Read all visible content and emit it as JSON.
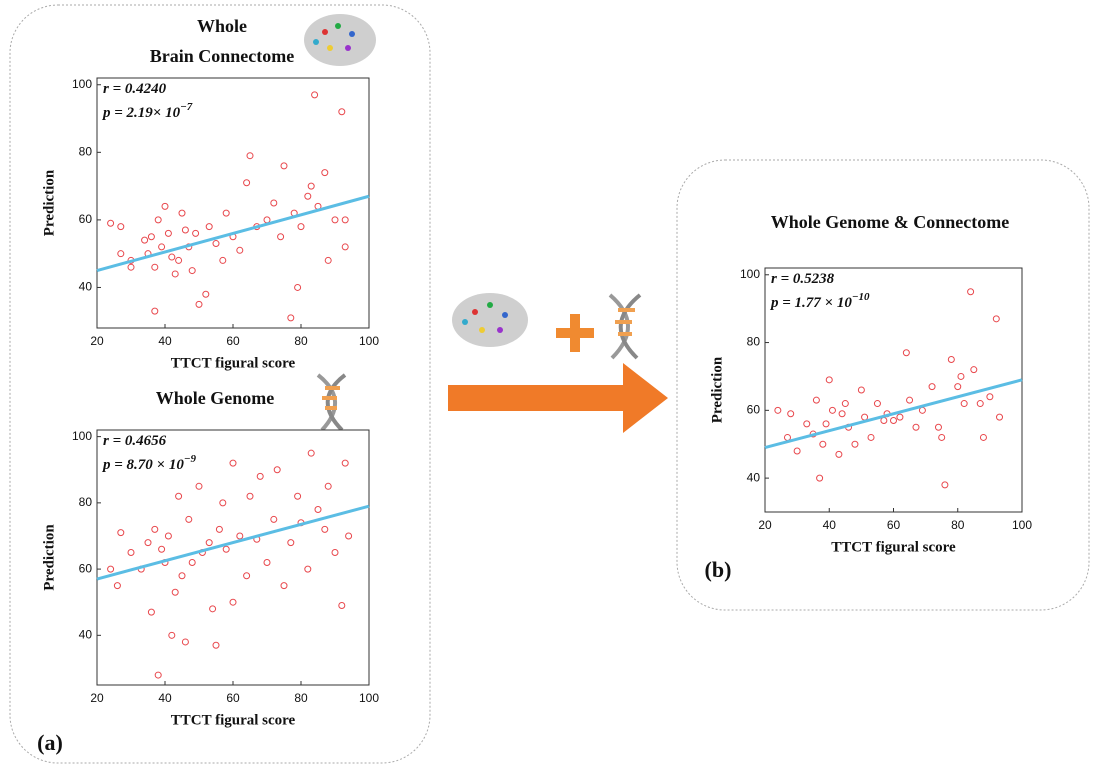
{
  "chart_data": [
    {
      "type": "scatter",
      "panel": "(a)",
      "title": [
        "Whole",
        "Brain Connectome"
      ],
      "xlabel": "TTCT figural score",
      "ylabel": "Prediction",
      "annotations": [
        {
          "text": "r = 0.4240"
        },
        {
          "text": "p = 2.19× 10",
          "sup": "−7"
        }
      ],
      "color": "#e8474c",
      "x": [
        24,
        27,
        27,
        30,
        30,
        34,
        35,
        36,
        37,
        37,
        38,
        39,
        40,
        41,
        42,
        43,
        44,
        45,
        46,
        47,
        48,
        49,
        50,
        52,
        53,
        55,
        57,
        58,
        60,
        62,
        64,
        65,
        67,
        70,
        72,
        74,
        75,
        77,
        78,
        79,
        80,
        82,
        83,
        84,
        85,
        87,
        88,
        90,
        92,
        93,
        93
      ],
      "y": [
        59,
        50,
        58,
        48,
        46,
        54,
        50,
        55,
        46,
        33,
        60,
        52,
        64,
        56,
        49,
        44,
        48,
        62,
        57,
        52,
        45,
        56,
        35,
        38,
        58,
        53,
        48,
        62,
        55,
        51,
        71,
        79,
        58,
        60,
        65,
        55,
        76,
        31,
        62,
        40,
        58,
        67,
        70,
        97,
        64,
        74,
        48,
        60,
        92,
        52,
        60
      ],
      "fit": {
        "x": [
          20,
          100
        ],
        "y": [
          45,
          67
        ],
        "color": "#5bbde4"
      },
      "xlim": [
        20,
        100
      ],
      "xticks": [
        20,
        40,
        60,
        80,
        100
      ],
      "ylim": [
        28,
        102
      ],
      "yticks": [
        40,
        60,
        80,
        100
      ]
    },
    {
      "type": "scatter",
      "title": [
        "Whole Genome"
      ],
      "xlabel": "TTCT figural score",
      "ylabel": "Prediction",
      "annotations": [
        {
          "text": "r = 0.4656"
        },
        {
          "text": "p = 8.70 × 10",
          "sup": "−9"
        }
      ],
      "color": "#e8474c",
      "x": [
        24,
        26,
        27,
        30,
        33,
        35,
        36,
        37,
        38,
        39,
        40,
        41,
        42,
        43,
        44,
        45,
        46,
        47,
        48,
        50,
        51,
        53,
        54,
        55,
        56,
        57,
        58,
        60,
        60,
        62,
        64,
        65,
        67,
        68,
        70,
        72,
        73,
        75,
        77,
        79,
        80,
        82,
        83,
        85,
        87,
        88,
        90,
        92,
        93,
        94
      ],
      "y": [
        60,
        55,
        71,
        65,
        60,
        68,
        47,
        72,
        28,
        66,
        62,
        70,
        40,
        53,
        82,
        58,
        38,
        75,
        62,
        85,
        65,
        68,
        48,
        37,
        72,
        80,
        66,
        92,
        50,
        70,
        58,
        82,
        69,
        88,
        62,
        75,
        90,
        55,
        68,
        82,
        74,
        60,
        95,
        78,
        72,
        85,
        65,
        49,
        92,
        70
      ],
      "fit": {
        "x": [
          20,
          100
        ],
        "y": [
          57,
          79
        ],
        "color": "#5bbde4"
      },
      "xlim": [
        20,
        100
      ],
      "xticks": [
        20,
        40,
        60,
        80,
        100
      ],
      "ylim": [
        25,
        102
      ],
      "yticks": [
        40,
        60,
        80,
        100
      ]
    },
    {
      "type": "scatter",
      "panel": "(b)",
      "title": [
        "Whole Genome & Connectome"
      ],
      "xlabel": "TTCT figural score",
      "ylabel": "Prediction",
      "annotations": [
        {
          "text": "r = 0.5238"
        },
        {
          "text": "p = 1.77 × 10",
          "sup": "−10"
        }
      ],
      "color": "#e8474c",
      "x": [
        24,
        27,
        28,
        30,
        33,
        35,
        36,
        37,
        38,
        39,
        40,
        41,
        43,
        44,
        45,
        46,
        48,
        50,
        51,
        53,
        55,
        57,
        58,
        60,
        62,
        64,
        65,
        67,
        69,
        72,
        74,
        75,
        76,
        78,
        80,
        81,
        82,
        84,
        85,
        87,
        88,
        90,
        92,
        93
      ],
      "y": [
        60,
        52,
        59,
        48,
        56,
        53,
        63,
        40,
        50,
        56,
        69,
        60,
        47,
        59,
        62,
        55,
        50,
        66,
        58,
        52,
        62,
        57,
        59,
        57,
        58,
        77,
        63,
        55,
        60,
        67,
        55,
        52,
        38,
        75,
        67,
        70,
        62,
        95,
        72,
        62,
        52,
        64,
        87,
        58
      ],
      "fit": {
        "x": [
          20,
          100
        ],
        "y": [
          49,
          69
        ],
        "color": "#5bbde4"
      },
      "xlim": [
        20,
        100
      ],
      "xticks": [
        20,
        40,
        60,
        80,
        100
      ],
      "ylim": [
        30,
        102
      ],
      "yticks": [
        40,
        60,
        80,
        100
      ]
    }
  ]
}
